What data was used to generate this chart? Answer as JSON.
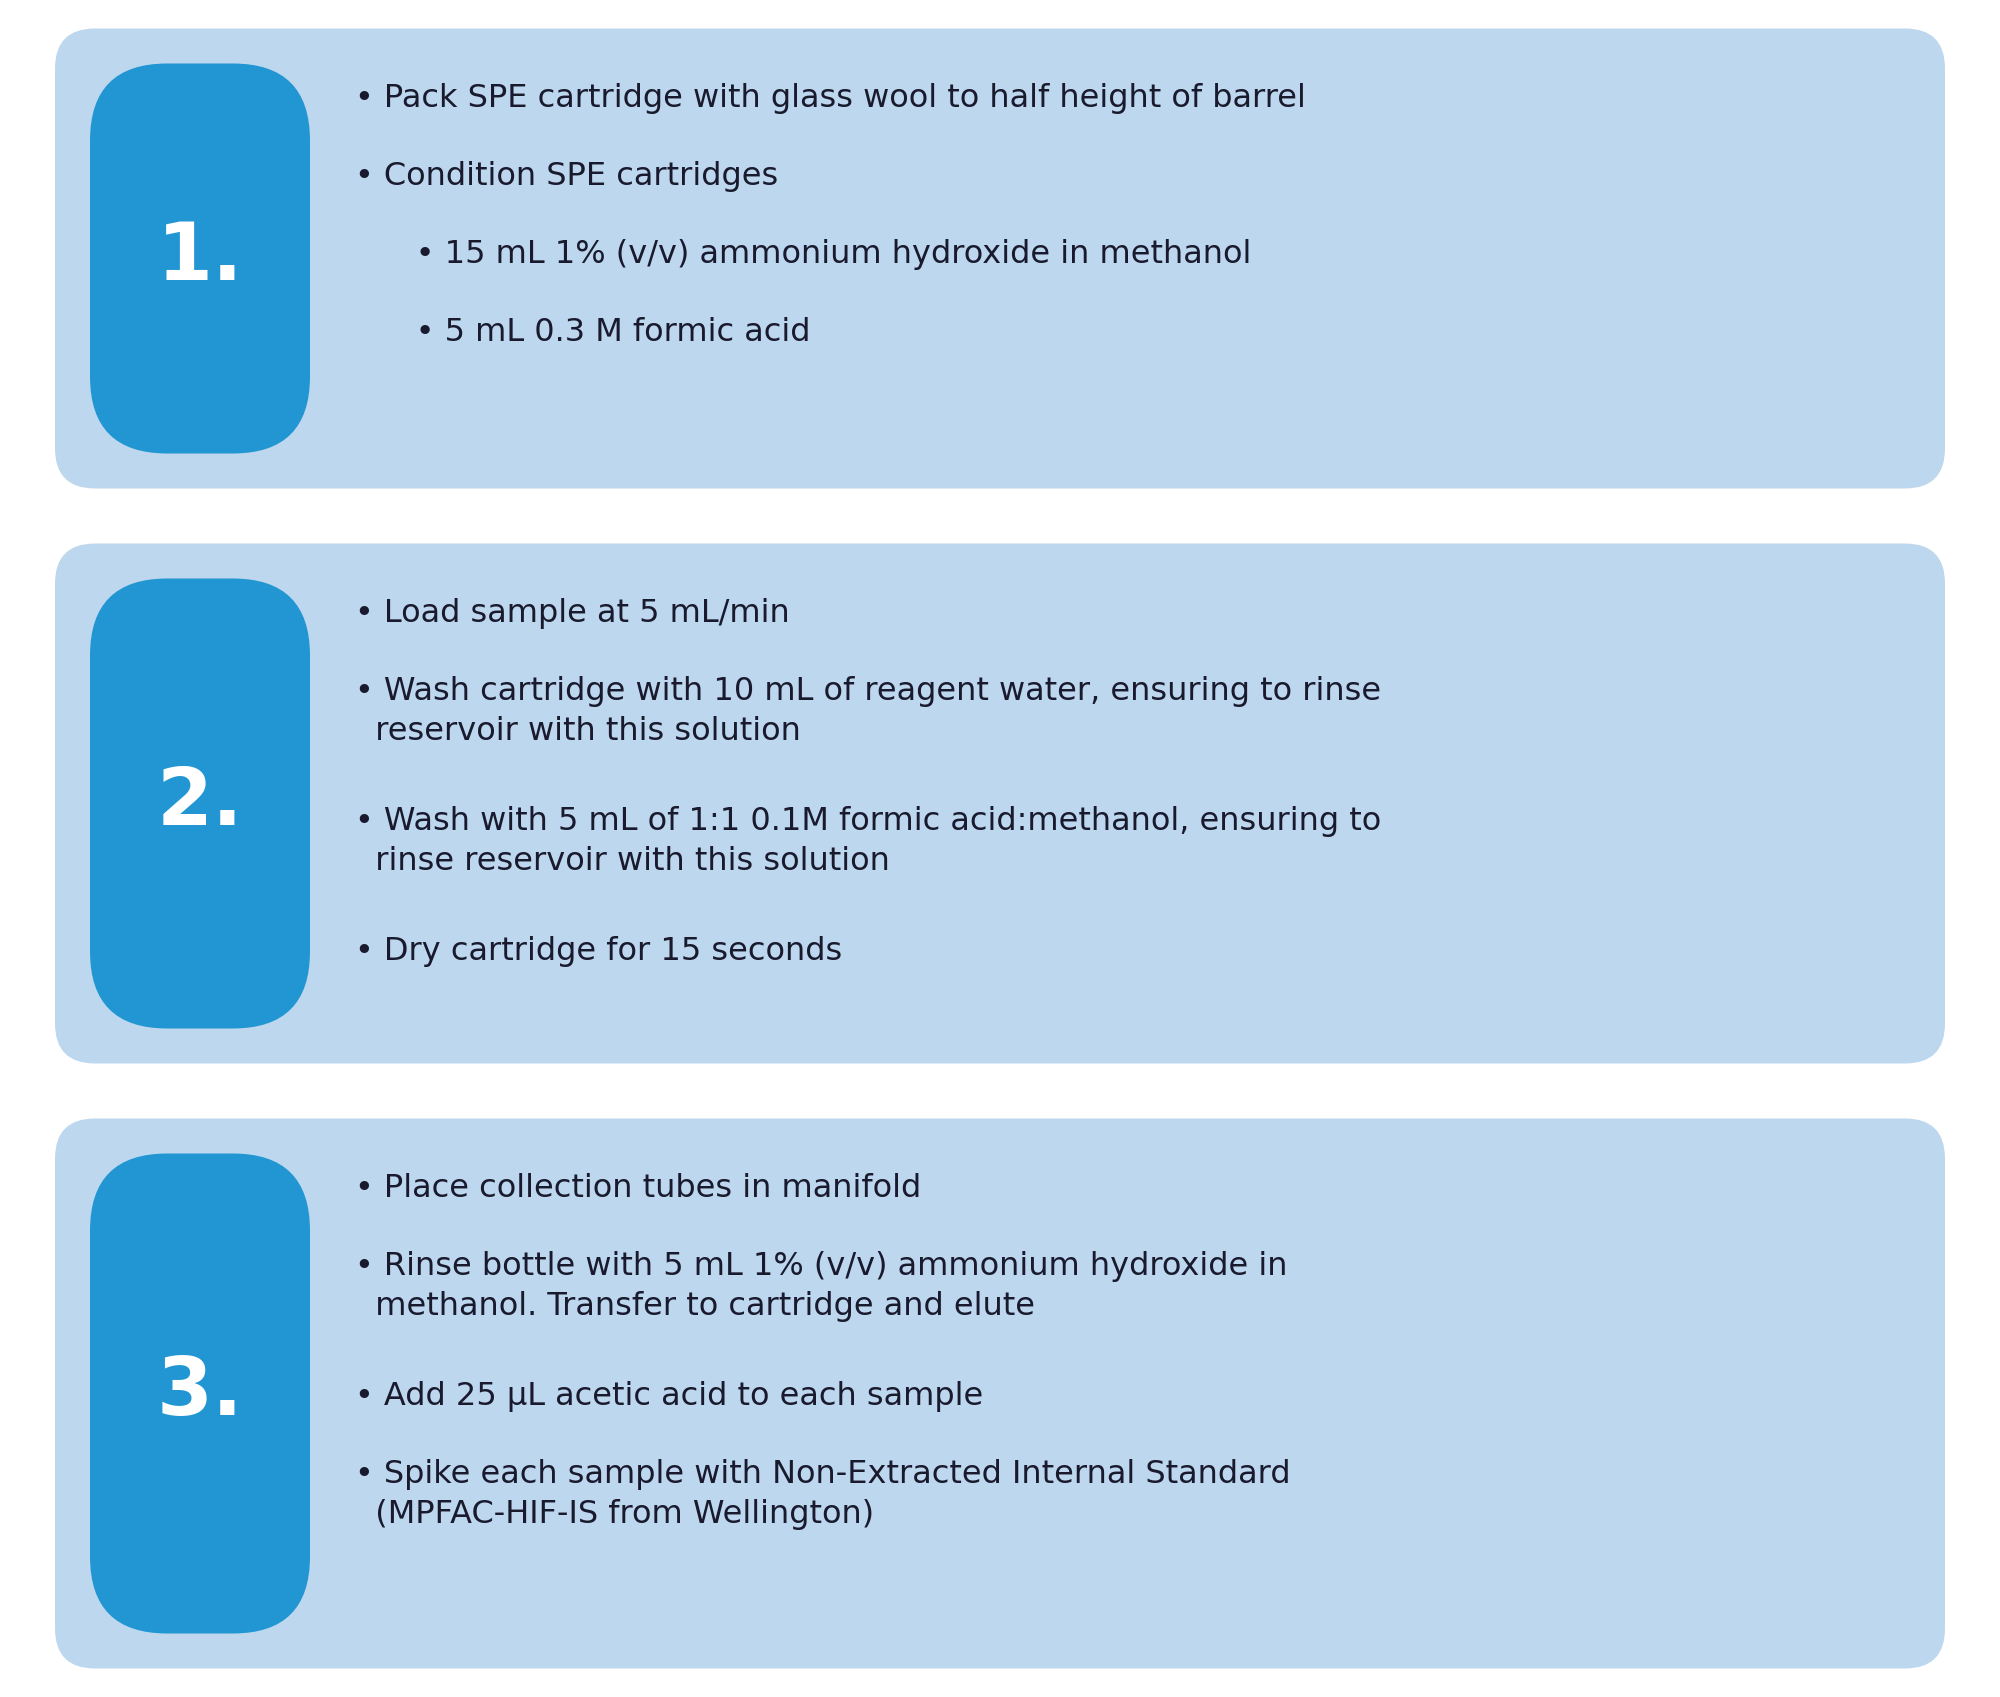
{
  "background_color": "#ffffff",
  "box_bg_color": "#bdd7ee",
  "number_box_color": "#2196d3",
  "number_color": "#ffffff",
  "text_color": "#1a1a2e",
  "fig_width": 20.0,
  "fig_height": 16.97,
  "dpi": 100,
  "steps": [
    {
      "number": "1.",
      "lines": [
        {
          "text": "• Pack SPE cartridge with glass wool to half height of barrel",
          "indent": 0
        },
        {
          "text": "• Condition SPE cartridges",
          "indent": 0
        },
        {
          "text": "      • 15 mL 1% (v/v) ammonium hydroxide in methanol",
          "indent": 1
        },
        {
          "text": "      • 5 mL 0.3 M formic acid",
          "indent": 1
        }
      ]
    },
    {
      "number": "2.",
      "lines": [
        {
          "text": "• Load sample at 5 mL/min",
          "indent": 0
        },
        {
          "text": "• Wash cartridge with 10 mL of reagent water, ensuring to rinse\n  reservoir with this solution",
          "indent": 0
        },
        {
          "text": "• Wash with 5 mL of 1:1 0.1M formic acid:methanol, ensuring to\n  rinse reservoir with this solution",
          "indent": 0
        },
        {
          "text": "• Dry cartridge for 15 seconds",
          "indent": 0
        }
      ]
    },
    {
      "number": "3.",
      "lines": [
        {
          "text": "• Place collection tubes in manifold",
          "indent": 0
        },
        {
          "text": "• Rinse bottle with 5 mL 1% (v/v) ammonium hydroxide in\n  methanol. Transfer to cartridge and elute",
          "indent": 0
        },
        {
          "text": "• Add 25 μL acetic acid to each sample",
          "indent": 0
        },
        {
          "text": "• Spike each sample with Non-Extracted Internal Standard\n  (MPFAC-HIF-IS from Wellington)",
          "indent": 0
        }
      ]
    }
  ]
}
